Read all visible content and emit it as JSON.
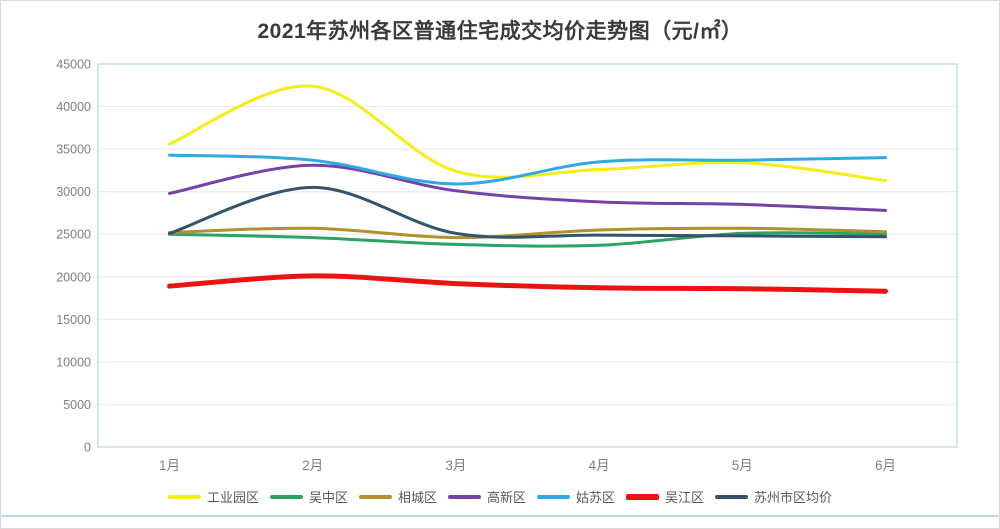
{
  "title": "2021年苏州各区普通住宅成交均价走势图（元/㎡）",
  "chart_data": {
    "type": "line",
    "smooth": true,
    "categories": [
      "1月",
      "2月",
      "3月",
      "4月",
      "5月",
      "6月"
    ],
    "series": [
      {
        "name": "工业园区",
        "color": "#f4ee17",
        "stroke_width": 3,
        "values": [
          35600,
          42400,
          32400,
          32600,
          33400,
          31300
        ]
      },
      {
        "name": "吴中区",
        "color": "#2ba266",
        "stroke_width": 3,
        "values": [
          25000,
          24600,
          23800,
          23700,
          25100,
          25000
        ]
      },
      {
        "name": "相城区",
        "color": "#b2902f",
        "stroke_width": 3,
        "values": [
          25200,
          25700,
          24600,
          25500,
          25700,
          25300
        ]
      },
      {
        "name": "高新区",
        "color": "#7642a8",
        "stroke_width": 3,
        "values": [
          29800,
          33100,
          30100,
          28800,
          28500,
          27800
        ]
      },
      {
        "name": "姑苏区",
        "color": "#2fa9e1",
        "stroke_width": 3,
        "values": [
          34300,
          33700,
          30900,
          33500,
          33700,
          34000
        ]
      },
      {
        "name": "吴江区",
        "color": "#eb1212",
        "stroke_width": 5,
        "values": [
          18900,
          20100,
          19200,
          18700,
          18600,
          18300
        ]
      },
      {
        "name": "苏州市区均价",
        "color": "#34546c",
        "stroke_width": 3,
        "values": [
          25100,
          30500,
          25100,
          24900,
          24800,
          24700
        ]
      }
    ],
    "yticks": [
      0,
      5000,
      10000,
      15000,
      20000,
      25000,
      30000,
      35000,
      40000,
      45000
    ],
    "ylim": [
      0,
      45000
    ],
    "xlabel": "",
    "ylabel": "",
    "grid": true,
    "legend_position": "bottom",
    "colors": {
      "plot_border": "#a5d2c1",
      "gridline": "#e7e7e7",
      "axis_text": "#7f7f7f",
      "legend_text": "#595959",
      "title_text": "#3b3b3b"
    }
  }
}
